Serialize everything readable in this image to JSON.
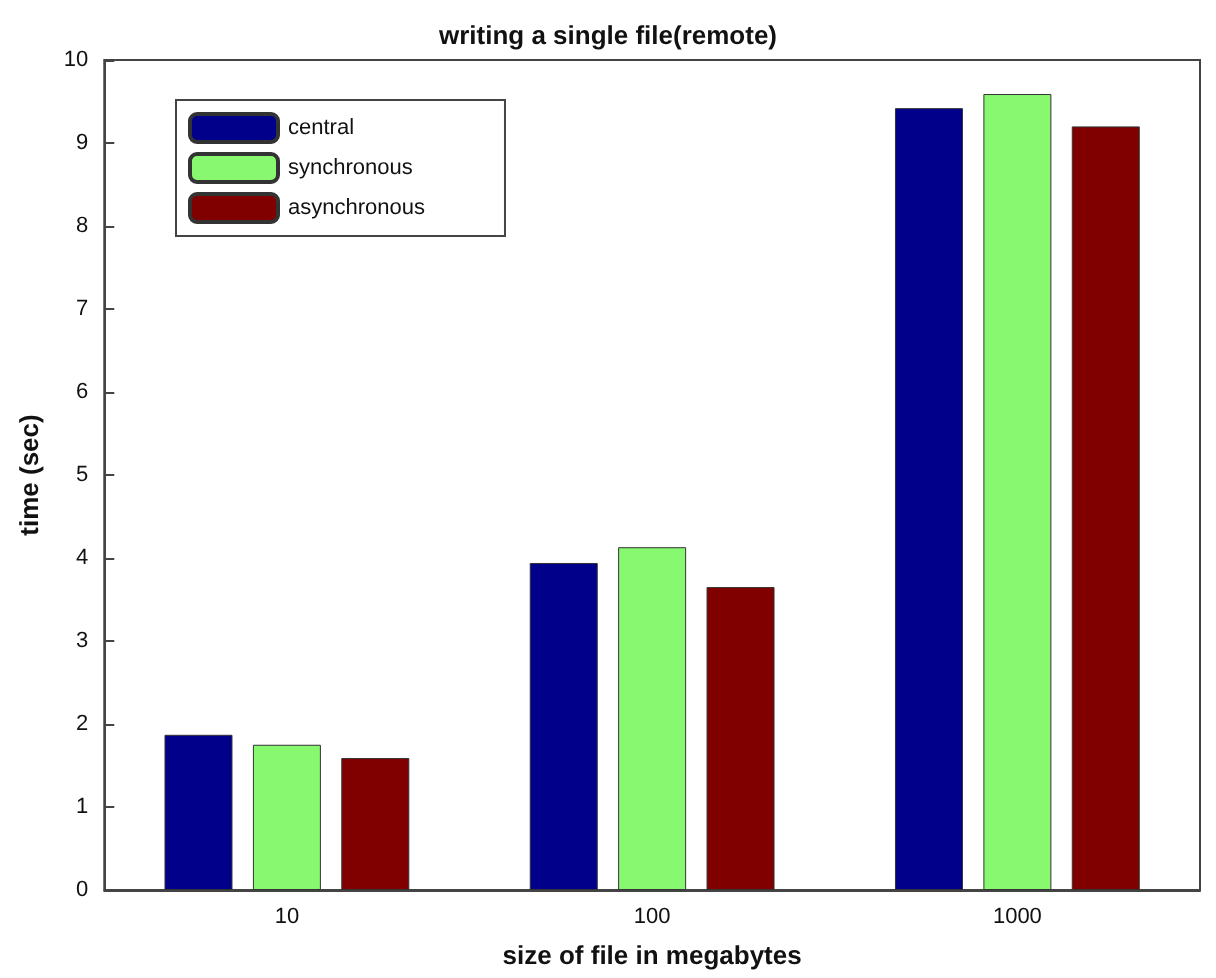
{
  "chart_data": {
    "type": "bar",
    "title": "writing a single file(remote)",
    "xlabel": "size of file in megabytes",
    "ylabel": "time (sec)",
    "categories": [
      "10",
      "100",
      "1000"
    ],
    "series": [
      {
        "name": "central",
        "color": "#00008b",
        "values": [
          1.87,
          3.94,
          9.42
        ]
      },
      {
        "name": "synchronous",
        "color": "#88f870",
        "values": [
          1.75,
          4.13,
          9.59
        ]
      },
      {
        "name": "asynchronous",
        "color": "#800000",
        "values": [
          1.59,
          3.65,
          9.2
        ]
      }
    ],
    "ylim": [
      0,
      10
    ],
    "yticks": [
      0,
      1,
      2,
      3,
      4,
      5,
      6,
      7,
      8,
      9,
      10
    ],
    "grid": false,
    "legend": "top left"
  }
}
